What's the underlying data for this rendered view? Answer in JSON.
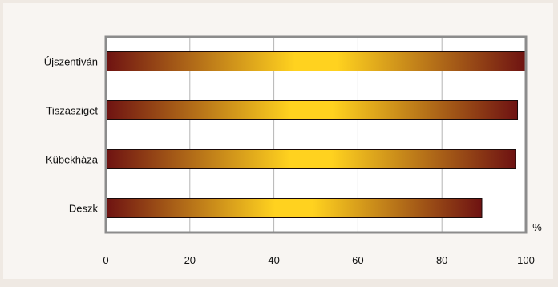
{
  "chart_data": {
    "type": "bar",
    "orientation": "horizontal",
    "categories": [
      "Újszentiván",
      "Tiszasziget",
      "Kübekháza",
      "Deszk"
    ],
    "values": [
      100,
      98,
      97.5,
      89.5
    ],
    "xlim": [
      0,
      100
    ],
    "x_ticks": [
      "0",
      "20",
      "40",
      "60",
      "80",
      "100"
    ],
    "unit_label": "%",
    "grid": true,
    "legend": "none",
    "colors": {
      "bar_edge": "#6e1212",
      "bar_center": "#ffd21f",
      "frame": "#8c8c8c",
      "grid": "#b5b5b5",
      "plot_background": "#ffffff"
    }
  }
}
